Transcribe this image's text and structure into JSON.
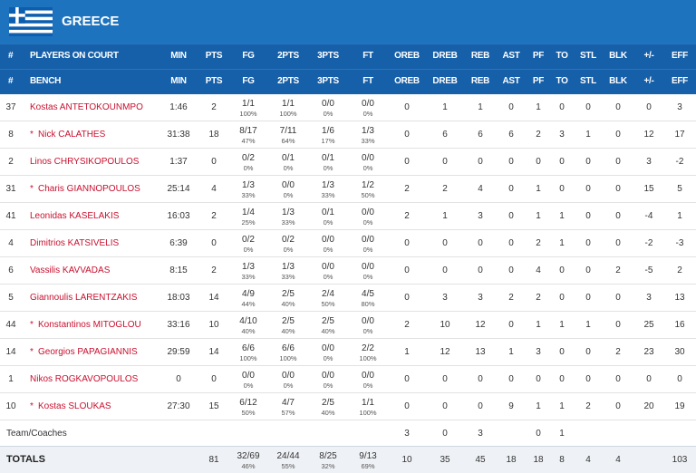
{
  "team": {
    "name": "GREECE"
  },
  "header": {
    "on_court": {
      "number": "#",
      "label": "PLAYERS ON COURT",
      "columns": [
        "MIN",
        "PTS",
        "FG",
        "2PTS",
        "3PTS",
        "FT",
        "OREB",
        "DREB",
        "REB",
        "AST",
        "PF",
        "TO",
        "STL",
        "BLK",
        "+/-",
        "EFF"
      ]
    },
    "bench": {
      "number": "#",
      "label": "BENCH",
      "columns": [
        "MIN",
        "PTS",
        "FG",
        "2PTS",
        "3PTS",
        "FT",
        "OREB",
        "DREB",
        "REB",
        "AST",
        "PF",
        "TO",
        "STL",
        "BLK",
        "+/-",
        "EFF"
      ]
    }
  },
  "players": [
    {
      "number": 37,
      "name": "Kostas ANTETOKOUNMPO",
      "stats": {
        "min": "1:46",
        "pts": 2,
        "fg": [
          "1/1",
          "100%"
        ],
        "2pts": [
          "1/1",
          "100%"
        ],
        "3pts": [
          "0/0",
          "0%"
        ],
        "ft": [
          "0/0",
          "0%"
        ],
        "oreb": 0,
        "dreb": 1,
        "reb": 1,
        "ast": 0,
        "pf": 1,
        "to": 0,
        "stl": 0,
        "blk": 0,
        "pm": 0,
        "eff": 3
      }
    },
    {
      "number": 8,
      "starter": "*",
      "name": "Nick CALATHES",
      "stats": {
        "min": "31:38",
        "pts": 18,
        "fg": [
          "8/17",
          "47%"
        ],
        "2pts": [
          "7/11",
          "64%"
        ],
        "3pts": [
          "1/6",
          "17%"
        ],
        "ft": [
          "1/3",
          "33%"
        ],
        "oreb": 0,
        "dreb": 6,
        "reb": 6,
        "ast": 6,
        "pf": 2,
        "to": 3,
        "stl": 1,
        "blk": 0,
        "pm": 12,
        "eff": 17
      }
    },
    {
      "number": 2,
      "name": "Linos CHRYSIKOPOULOS",
      "stats": {
        "min": "1:37",
        "pts": 0,
        "fg": [
          "0/2",
          "0%"
        ],
        "2pts": [
          "0/1",
          "0%"
        ],
        "3pts": [
          "0/1",
          "0%"
        ],
        "ft": [
          "0/0",
          "0%"
        ],
        "oreb": 0,
        "dreb": 0,
        "reb": 0,
        "ast": 0,
        "pf": 0,
        "to": 0,
        "stl": 0,
        "blk": 0,
        "pm": 3,
        "eff": -2
      }
    },
    {
      "number": 31,
      "starter": "*",
      "name": "Charis GIANNOPOULOS",
      "stats": {
        "min": "25:14",
        "pts": 4,
        "fg": [
          "1/3",
          "33%"
        ],
        "2pts": [
          "0/0",
          "0%"
        ],
        "3pts": [
          "1/3",
          "33%"
        ],
        "ft": [
          "1/2",
          "50%"
        ],
        "oreb": 2,
        "dreb": 2,
        "reb": 4,
        "ast": 0,
        "pf": 1,
        "to": 0,
        "stl": 0,
        "blk": 0,
        "pm": 15,
        "eff": 5
      }
    },
    {
      "number": 41,
      "name": "Leonidas KASELAKIS",
      "stats": {
        "min": "16:03",
        "pts": 2,
        "fg": [
          "1/4",
          "25%"
        ],
        "2pts": [
          "1/3",
          "33%"
        ],
        "3pts": [
          "0/1",
          "0%"
        ],
        "ft": [
          "0/0",
          "0%"
        ],
        "oreb": 2,
        "dreb": 1,
        "reb": 3,
        "ast": 0,
        "pf": 1,
        "to": 1,
        "stl": 0,
        "blk": 0,
        "pm": -4,
        "eff": 1
      }
    },
    {
      "number": 4,
      "name": "Dimitrios KATSIVELIS",
      "stats": {
        "min": "6:39",
        "pts": 0,
        "fg": [
          "0/2",
          "0%"
        ],
        "2pts": [
          "0/2",
          "0%"
        ],
        "3pts": [
          "0/0",
          "0%"
        ],
        "ft": [
          "0/0",
          "0%"
        ],
        "oreb": 0,
        "dreb": 0,
        "reb": 0,
        "ast": 0,
        "pf": 2,
        "to": 1,
        "stl": 0,
        "blk": 0,
        "pm": -2,
        "eff": -3
      }
    },
    {
      "number": 6,
      "name": "Vassilis KAVVADAS",
      "stats": {
        "min": "8:15",
        "pts": 2,
        "fg": [
          "1/3",
          "33%"
        ],
        "2pts": [
          "1/3",
          "33%"
        ],
        "3pts": [
          "0/0",
          "0%"
        ],
        "ft": [
          "0/0",
          "0%"
        ],
        "oreb": 0,
        "dreb": 0,
        "reb": 0,
        "ast": 0,
        "pf": 4,
        "to": 0,
        "stl": 0,
        "blk": 2,
        "pm": -5,
        "eff": 2
      }
    },
    {
      "number": 5,
      "name": "Giannoulis LARENTZAKIS",
      "stats": {
        "min": "18:03",
        "pts": 14,
        "fg": [
          "4/9",
          "44%"
        ],
        "2pts": [
          "2/5",
          "40%"
        ],
        "3pts": [
          "2/4",
          "50%"
        ],
        "ft": [
          "4/5",
          "80%"
        ],
        "oreb": 0,
        "dreb": 3,
        "reb": 3,
        "ast": 2,
        "pf": 2,
        "to": 0,
        "stl": 0,
        "blk": 0,
        "pm": 3,
        "eff": 13
      }
    },
    {
      "number": 44,
      "starter": "*",
      "name": "Konstantinos MITOGLOU",
      "stats": {
        "min": "33:16",
        "pts": 10,
        "fg": [
          "4/10",
          "40%"
        ],
        "2pts": [
          "2/5",
          "40%"
        ],
        "3pts": [
          "2/5",
          "40%"
        ],
        "ft": [
          "0/0",
          "0%"
        ],
        "oreb": 2,
        "dreb": 10,
        "reb": 12,
        "ast": 0,
        "pf": 1,
        "to": 1,
        "stl": 1,
        "blk": 0,
        "pm": 25,
        "eff": 16
      }
    },
    {
      "number": 14,
      "starter": "*",
      "name": "Georgios PAPAGIANNIS",
      "stats": {
        "min": "29:59",
        "pts": 14,
        "fg": [
          "6/6",
          "100%"
        ],
        "2pts": [
          "6/6",
          "100%"
        ],
        "3pts": [
          "0/0",
          "0%"
        ],
        "ft": [
          "2/2",
          "100%"
        ],
        "oreb": 1,
        "dreb": 12,
        "reb": 13,
        "ast": 1,
        "pf": 3,
        "to": 0,
        "stl": 0,
        "blk": 2,
        "pm": 23,
        "eff": 30
      }
    },
    {
      "number": 1,
      "name": "Nikos ROGKAVOPOULOS",
      "stats": {
        "min": "0",
        "pts": 0,
        "fg": [
          "0/0",
          "0%"
        ],
        "2pts": [
          "0/0",
          "0%"
        ],
        "3pts": [
          "0/0",
          "0%"
        ],
        "ft": [
          "0/0",
          "0%"
        ],
        "oreb": 0,
        "dreb": 0,
        "reb": 0,
        "ast": 0,
        "pf": 0,
        "to": 0,
        "stl": 0,
        "blk": 0,
        "pm": 0,
        "eff": 0
      }
    },
    {
      "number": 10,
      "starter": "*",
      "name": "Kostas SLOUKAS",
      "stats": {
        "min": "27:30",
        "pts": 15,
        "fg": [
          "6/12",
          "50%"
        ],
        "2pts": [
          "4/7",
          "57%"
        ],
        "3pts": [
          "2/5",
          "40%"
        ],
        "ft": [
          "1/1",
          "100%"
        ],
        "oreb": 0,
        "dreb": 0,
        "reb": 0,
        "ast": 9,
        "pf": 1,
        "to": 1,
        "stl": 2,
        "blk": 0,
        "pm": 20,
        "eff": 19
      }
    }
  ],
  "team_row": {
    "label": "Team/Coaches",
    "stats": {
      "oreb": 3,
      "dreb": 0,
      "reb": 3,
      "pf": 0,
      "to": 1
    }
  },
  "totals": {
    "label": "TOTALS",
    "stats": {
      "pts": 81,
      "fg": [
        "32/69",
        "46%"
      ],
      "2pts": [
        "24/44",
        "55%"
      ],
      "3pts": [
        "8/25",
        "32%"
      ],
      "ft": [
        "9/13",
        "69%"
      ],
      "oreb": 10,
      "dreb": 35,
      "reb": 45,
      "ast": 18,
      "pf": 18,
      "to": 8,
      "stl": 4,
      "blk": 4,
      "eff": 103
    }
  }
}
